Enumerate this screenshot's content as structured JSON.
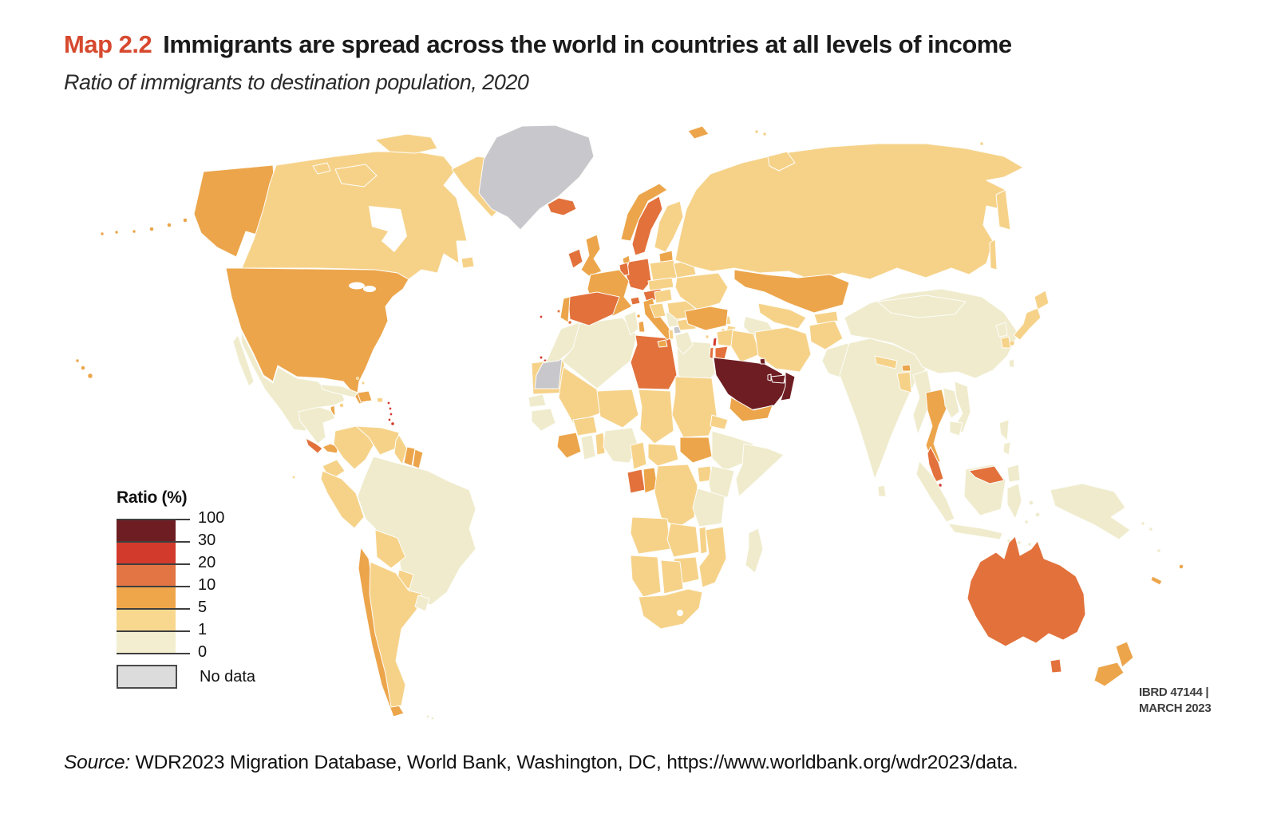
{
  "figure": {
    "label": "Map 2.2",
    "title": "Immigrants are spread across the world in countries at all levels of income",
    "subtitle": "Ratio of immigrants to destination population, 2020",
    "accent_color": "#d6492e",
    "source_prefix": "Source:",
    "source_text": " WDR2023 Migration Database, World Bank, Washington, DC, https://www.worldbank.org/wdr2023/data.",
    "map_ref": "IBRD 47144 |",
    "map_date": "MARCH 2023"
  },
  "legend": {
    "title": "Ratio (%)",
    "boundary_labels": [
      "100",
      "30",
      "20",
      "10",
      "5",
      "1",
      "0"
    ],
    "bands": [
      {
        "range": "30-100",
        "color": "#6e1d23"
      },
      {
        "range": "20-30",
        "color": "#d23a2c"
      },
      {
        "range": "10-20",
        "color": "#e37444"
      },
      {
        "range": "5-10",
        "color": "#efa64b"
      },
      {
        "range": "1-5",
        "color": "#f8d88f"
      },
      {
        "range": "0-1",
        "color": "#f2eecf"
      }
    ],
    "no_data": {
      "label": "No data",
      "color": "#dcdcdc"
    }
  },
  "map_data": {
    "type": "choropleth",
    "metric": "Ratio of immigrants to destination population (%), 2020",
    "classes": {
      "30-100": "#6e1d23",
      "20-30": "#d23a2c",
      "10-20": "#e2713c",
      "5-10": "#eca54b",
      "1-5": "#f6d289",
      "0-1": "#efebcc",
      "no-data": "#c7c7cc"
    },
    "regions": {
      "alaska": "5-10",
      "aleutians": "5-10",
      "hawaii": "5-10",
      "usa": "5-10",
      "canada": "1-5",
      "greenland": "no-data",
      "iceland": "10-20",
      "mexico": "0-1",
      "belize": "5-10",
      "central-america": "0-1",
      "costa-rica": "10-20",
      "panama": "5-10",
      "cuba": "0-1",
      "jamaica": "1-5",
      "hispaniola": "5-10",
      "puerto-rico": "1-5",
      "bahamas": "1-5",
      "lesser-antilles": "20-30",
      "trinidad": "20-30",
      "bermuda": "20-30",
      "atlantic-islands": "10-20",
      "cape-verde": "20-30",
      "colombia": "1-5",
      "venezuela": "1-5",
      "guyana": "1-5",
      "suriname": "5-10",
      "french-guiana": "5-10",
      "ecuador": "1-5",
      "peru": "1-5",
      "brazil": "0-1",
      "bolivia": "1-5",
      "paraguay": "1-5",
      "chile": "5-10",
      "argentina": "1-5",
      "uruguay": "0-1",
      "galapagos": "1-5",
      "falklands": "0-1",
      "morocco": "0-1",
      "western-sahara": "no-data",
      "algeria": "0-1",
      "tunisia": "0-1",
      "libya": "10-20",
      "egypt": "0-1",
      "mauritania": "1-5",
      "mali": "1-5",
      "senegal": "0-1",
      "guinea": "0-1",
      "cote-divoire": "5-10",
      "ghana": "0-1",
      "burkina-faso": "1-5",
      "togo-benin": "1-5",
      "niger": "1-5",
      "nigeria": "0-1",
      "chad": "1-5",
      "sudan": "1-5",
      "eritrea": "1-5",
      "djibouti": "20-30",
      "south-sudan": "5-10",
      "ethiopia": "0-1",
      "somalia": "0-1",
      "cameroon": "1-5",
      "central-african-republic": "1-5",
      "gabon": "10-20",
      "congo": "5-10",
      "drc": "1-5",
      "uganda": "1-5",
      "kenya": "0-1",
      "tanzania": "0-1",
      "angola": "1-5",
      "zambia": "1-5",
      "malawi": "1-5",
      "mozambique": "1-5",
      "zimbabwe": "1-5",
      "namibia": "1-5",
      "botswana": "1-5",
      "south-africa": "1-5",
      "madagascar": "0-1",
      "ireland": "10-20",
      "uk": "5-10",
      "norway": "5-10",
      "sweden": "10-20",
      "finland": "1-5",
      "denmark": "5-10",
      "baltics": "5-10",
      "poland": "1-5",
      "germany": "10-20",
      "benelux": "10-20",
      "france": "5-10",
      "switzerland": "10-20",
      "austria": "10-20",
      "czech-slovakia": "1-5",
      "hungary": "1-5",
      "spain": "10-20",
      "portugal": "5-10",
      "italy": "5-10",
      "croatia-slovenia": "1-5",
      "serbia-bosnia": "0-1",
      "kosovo": "no-data",
      "albania": "1-5",
      "greece": "0-1",
      "bulgaria": "1-5",
      "romania": "1-5",
      "moldova": "1-5",
      "ukraine": "1-5",
      "belarus": "1-5",
      "russia": "1-5",
      "svalbard": "5-10",
      "novaya-zemlya": "1-5",
      "franz-josef": "1-5",
      "kazakhstan": "5-10",
      "uzbekistan": "1-5",
      "turkmenistan": "0-1",
      "kyrgyzstan": "1-5",
      "tajikistan": "1-5",
      "georgia": "1-5",
      "armenia": "1-5",
      "azerbaijan": "1-5",
      "turkey": "5-10",
      "cyprus": "1-5",
      "syria": "1-5",
      "lebanon": "20-30",
      "israel": "10-20",
      "jordan": "10-20",
      "iraq": "1-5",
      "iran": "1-5",
      "saudi-arabia": "30-100",
      "kuwait": "30-100",
      "qatar": "30-100",
      "uae": "30-100",
      "oman": "30-100",
      "yemen": "5-10",
      "afghanistan": "1-5",
      "pakistan": "0-1",
      "india": "0-1",
      "nepal": "1-5",
      "bhutan": "5-10",
      "bangladesh": "1-5",
      "sri-lanka": "0-1",
      "myanmar": "0-1",
      "china": "0-1",
      "mongolia": "0-1",
      "taiwan": "0-1",
      "north-korea": "0-1",
      "south-korea": "1-5",
      "japan": "1-5",
      "thailand": "5-10",
      "laos": "0-1",
      "vietnam": "0-1",
      "cambodia": "0-1",
      "malaysia": "10-20",
      "singapore": "20-30",
      "indonesia": "0-1",
      "east-malaysia": "10-20",
      "philippines": "0-1",
      "papua-new-guinea": "0-1",
      "solomon-islands": "0-1",
      "fiji": "5-10",
      "vanuatu": "0-1",
      "new-caledonia": "5-10",
      "australia": "10-20",
      "tasmania": "10-20",
      "new-zealand": "5-10"
    }
  }
}
